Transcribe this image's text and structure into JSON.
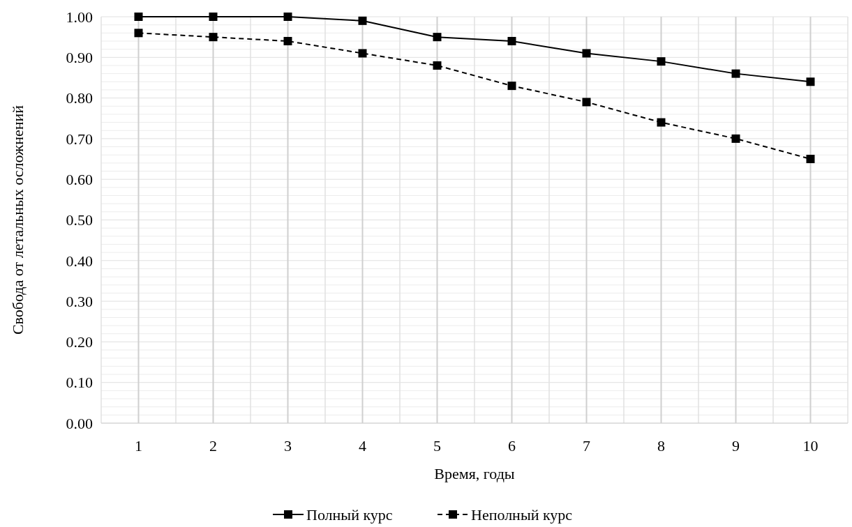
{
  "chart_data": {
    "type": "line",
    "xlabel": "Время, годы",
    "ylabel": "Свобода от летальных осложнений",
    "categories": [
      "1",
      "2",
      "3",
      "4",
      "5",
      "6",
      "7",
      "8",
      "9",
      "10"
    ],
    "series": [
      {
        "name": "Полный курс",
        "color": "#000000",
        "line_style": "solid",
        "values": [
          1.0,
          1.0,
          1.0,
          0.99,
          0.95,
          0.94,
          0.91,
          0.89,
          0.86,
          0.84
        ]
      },
      {
        "name": "Неполный курс",
        "color": "#000000",
        "line_style": "dashed",
        "values": [
          0.96,
          0.95,
          0.94,
          0.91,
          0.88,
          0.83,
          0.79,
          0.74,
          0.7,
          0.65
        ]
      }
    ],
    "ylim": [
      0,
      1
    ],
    "yticks": [
      {
        "value": 0,
        "label": "0.00"
      },
      {
        "value": 0.02,
        "label": null
      },
      {
        "value": 0.04,
        "label": null
      },
      {
        "value": 0.06,
        "label": null
      },
      {
        "value": 0.08,
        "label": null
      },
      {
        "value": 0.1,
        "label": "0.10"
      },
      {
        "value": 0.12,
        "label": null
      },
      {
        "value": 0.14,
        "label": null
      },
      {
        "value": 0.16,
        "label": null
      },
      {
        "value": 0.18,
        "label": null
      },
      {
        "value": 0.2,
        "label": "0.20"
      },
      {
        "value": 0.22,
        "label": null
      },
      {
        "value": 0.24,
        "label": null
      },
      {
        "value": 0.26,
        "label": null
      },
      {
        "value": 0.28,
        "label": null
      },
      {
        "value": 0.3,
        "label": "0.30"
      },
      {
        "value": 0.32,
        "label": null
      },
      {
        "value": 0.34,
        "label": null
      },
      {
        "value": 0.36,
        "label": null
      },
      {
        "value": 0.38,
        "label": null
      },
      {
        "value": 0.4,
        "label": "0.40"
      },
      {
        "value": 0.42,
        "label": null
      },
      {
        "value": 0.44,
        "label": null
      },
      {
        "value": 0.46,
        "label": null
      },
      {
        "value": 0.48,
        "label": null
      },
      {
        "value": 0.5,
        "label": "0.50"
      },
      {
        "value": 0.52,
        "label": null
      },
      {
        "value": 0.54,
        "label": null
      },
      {
        "value": 0.56,
        "label": null
      },
      {
        "value": 0.58,
        "label": null
      },
      {
        "value": 0.6,
        "label": "0.60"
      },
      {
        "value": 0.62,
        "label": null
      },
      {
        "value": 0.64,
        "label": null
      },
      {
        "value": 0.66,
        "label": null
      },
      {
        "value": 0.68,
        "label": null
      },
      {
        "value": 0.7,
        "label": "0.70"
      },
      {
        "value": 0.72,
        "label": null
      },
      {
        "value": 0.74,
        "label": null
      },
      {
        "value": 0.76,
        "label": null
      },
      {
        "value": 0.78,
        "label": null
      },
      {
        "value": 0.8,
        "label": "0.80"
      },
      {
        "value": 0.82,
        "label": null
      },
      {
        "value": 0.84,
        "label": null
      },
      {
        "value": 0.86,
        "label": null
      },
      {
        "value": 0.88,
        "label": null
      },
      {
        "value": 0.9,
        "label": "0.90"
      },
      {
        "value": 0.92,
        "label": null
      },
      {
        "value": 0.94,
        "label": null
      },
      {
        "value": 0.96,
        "label": null
      },
      {
        "value": 0.98,
        "label": null
      },
      {
        "value": 1,
        "label": "1.00"
      }
    ],
    "grid": true,
    "legend": "bottom",
    "marker": "square"
  }
}
